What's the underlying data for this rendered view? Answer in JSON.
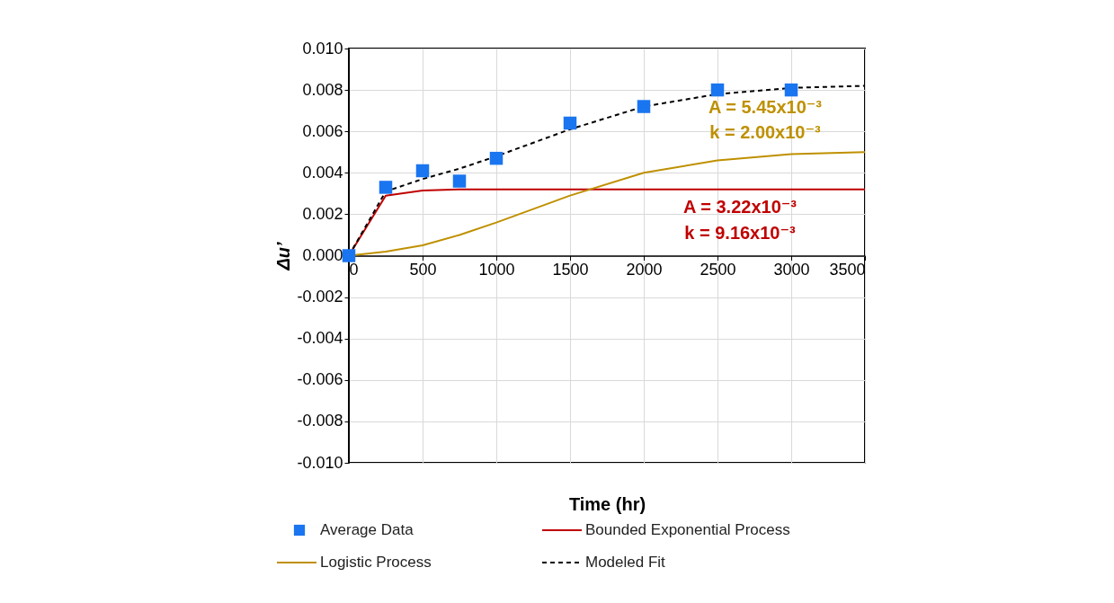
{
  "chart_data": {
    "type": "line",
    "xlabel": "Time (hr)",
    "ylabel": "Δu’",
    "xlim": [
      0,
      3500
    ],
    "xticks": [
      0,
      500,
      1000,
      1500,
      2000,
      2500,
      3000,
      3500
    ],
    "ylim": [
      -0.01,
      0.01
    ],
    "yticks": [
      {
        "value": -0.01,
        "label": "-0.010"
      },
      {
        "value": -0.008,
        "label": "-0.008"
      },
      {
        "value": -0.006,
        "label": "-0.006"
      },
      {
        "value": -0.004,
        "label": "-0.004"
      },
      {
        "value": -0.002,
        "label": "-0.002"
      },
      {
        "value": 0,
        "label": "0.000"
      },
      {
        "value": 0.002,
        "label": "0.002"
      },
      {
        "value": 0.004,
        "label": "0.004"
      },
      {
        "value": 0.006,
        "label": "0.006"
      },
      {
        "value": 0.008,
        "label": "0.008"
      },
      {
        "value": 0.01,
        "label": "0.010"
      }
    ],
    "grid": true,
    "legend": "bottom",
    "series": [
      {
        "name": "Average Data",
        "type": "scatter",
        "marker": "square",
        "color": "#1a75f0",
        "x": [
          0,
          250,
          500,
          750,
          1000,
          1500,
          2000,
          2500,
          3000
        ],
        "values": [
          0,
          0.0033,
          0.0041,
          0.0036,
          0.0047,
          0.0064,
          0.0072,
          0.008,
          0.008
        ]
      },
      {
        "name": "Bounded Exponential Process",
        "color": "#c00000",
        "x": [
          0,
          250,
          500,
          750,
          1000,
          1500,
          2000,
          2500,
          3000,
          3500
        ],
        "values": [
          0,
          0.0029,
          0.00315,
          0.0032,
          0.0032,
          0.0032,
          0.0032,
          0.0032,
          0.0032,
          0.0032
        ]
      },
      {
        "name": "Logistic Process",
        "color": "#bf9000",
        "x": [
          0,
          250,
          500,
          750,
          1000,
          1500,
          2000,
          2500,
          3000,
          3500
        ],
        "values": [
          0,
          0.0002,
          0.0005,
          0.001,
          0.0016,
          0.0029,
          0.004,
          0.0046,
          0.0049,
          0.005
        ]
      },
      {
        "name": "Modeled Fit",
        "line_style": "dashed",
        "color": "#000000",
        "x": [
          0,
          250,
          500,
          750,
          1000,
          1500,
          2000,
          2500,
          3000,
          3500
        ],
        "values": [
          0,
          0.0031,
          0.0037,
          0.0042,
          0.0048,
          0.0061,
          0.0072,
          0.0078,
          0.0081,
          0.0082
        ]
      }
    ],
    "annotations": [
      "A = 5.45x10⁻³",
      "k = 2.00x10⁻³",
      "A = 3.22x10⁻³",
      "k = 9.16x10⁻³"
    ]
  }
}
